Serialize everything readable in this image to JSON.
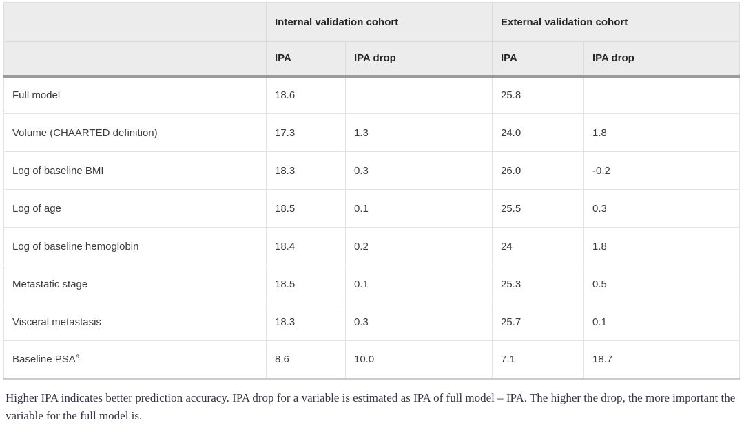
{
  "table": {
    "groups": {
      "internal": "Internal validation cohort",
      "external": "External validation cohort"
    },
    "sub_headers": [
      "IPA",
      "IPA drop",
      "IPA",
      "IPA drop"
    ],
    "rows": [
      {
        "label": "Full model",
        "sup": "",
        "values": [
          "18.6",
          "",
          "25.8",
          ""
        ]
      },
      {
        "label": "Volume (CHAARTED definition)",
        "sup": "",
        "values": [
          "17.3",
          "1.3",
          "24.0",
          "1.8"
        ]
      },
      {
        "label": "Log of baseline BMI",
        "sup": "",
        "values": [
          "18.3",
          "0.3",
          "26.0",
          "-0.2"
        ]
      },
      {
        "label": "Log of age",
        "sup": "",
        "values": [
          "18.5",
          "0.1",
          "25.5",
          "0.3"
        ]
      },
      {
        "label": "Log of baseline hemoglobin",
        "sup": "",
        "values": [
          "18.4",
          "0.2",
          "24",
          "1.8"
        ]
      },
      {
        "label": "Metastatic stage",
        "sup": "",
        "values": [
          "18.5",
          "0.1",
          "25.3",
          "0.5"
        ]
      },
      {
        "label": "Visceral metastasis",
        "sup": "",
        "values": [
          "18.3",
          "0.3",
          "25.7",
          "0.1"
        ]
      },
      {
        "label": "Baseline PSA",
        "sup": "a",
        "values": [
          "8.6",
          "10.0",
          "7.1",
          "18.7"
        ]
      }
    ]
  },
  "footnote": "Higher IPA indicates better prediction accuracy. IPA drop for a variable is estimated as IPA of full model – IPA. The higher the drop, the more important the variable for the full model is.",
  "colors": {
    "header_background": "#ececec",
    "header_text": "#262626",
    "thick_rule": "#9a9a9a",
    "cell_border": "#e3e3e3",
    "outer_border": "#d9d9d9",
    "body_text": "#3d3d3d",
    "footnote_text": "#333844"
  }
}
